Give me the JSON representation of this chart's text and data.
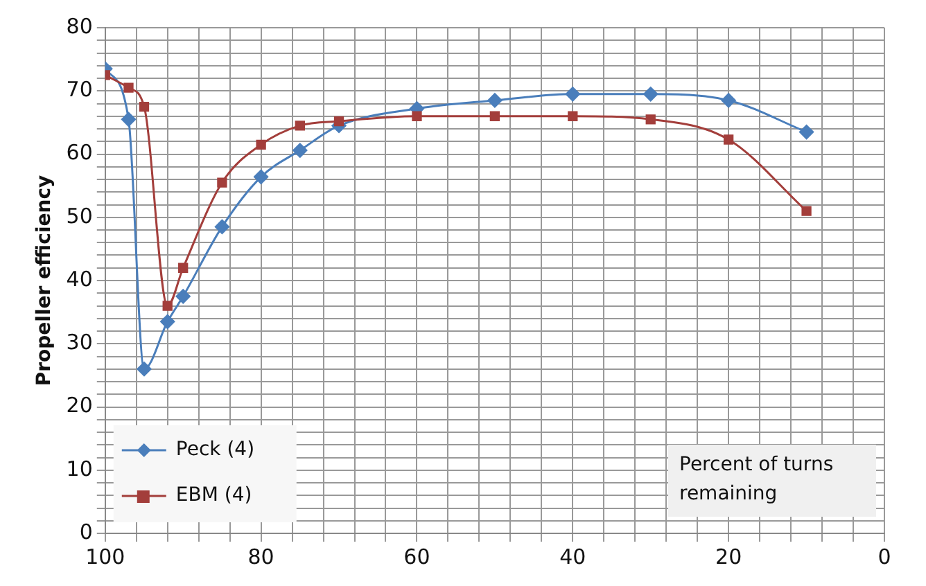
{
  "chart_data": {
    "type": "line",
    "ylabel": "Propeller efficiency",
    "xlabel": "Percent of turns remaining",
    "xlim": [
      100,
      0
    ],
    "ylim": [
      0,
      80
    ],
    "xticks": [
      100,
      {
        "value": 96,
        "label": null
      },
      {
        "value": 92,
        "label": null
      },
      {
        "value": 88,
        "label": null
      },
      {
        "value": 84,
        "label": null
      },
      80,
      {
        "value": 76,
        "label": null
      },
      {
        "value": 72,
        "label": null
      },
      {
        "value": 68,
        "label": null
      },
      {
        "value": 64,
        "label": null
      },
      60,
      {
        "value": 56,
        "label": null
      },
      {
        "value": 52,
        "label": null
      },
      {
        "value": 48,
        "label": null
      },
      {
        "value": 44,
        "label": null
      },
      40,
      {
        "value": 36,
        "label": null
      },
      {
        "value": 32,
        "label": null
      },
      {
        "value": 28,
        "label": null
      },
      {
        "value": 24,
        "label": null
      },
      20,
      {
        "value": 16,
        "label": null
      },
      {
        "value": 12,
        "label": null
      },
      {
        "value": 8,
        "label": null
      },
      {
        "value": 4,
        "label": null
      },
      0
    ],
    "yticks": [
      0,
      {
        "value": 2,
        "label": null
      },
      {
        "value": 4,
        "label": null
      },
      {
        "value": 6,
        "label": null
      },
      {
        "value": 8,
        "label": null
      },
      10,
      {
        "value": 12,
        "label": null
      },
      {
        "value": 14,
        "label": null
      },
      {
        "value": 16,
        "label": null
      },
      {
        "value": 18,
        "label": null
      },
      20,
      {
        "value": 22,
        "label": null
      },
      {
        "value": 24,
        "label": null
      },
      {
        "value": 26,
        "label": null
      },
      {
        "value": 28,
        "label": null
      },
      30,
      {
        "value": 32,
        "label": null
      },
      {
        "value": 34,
        "label": null
      },
      {
        "value": 36,
        "label": null
      },
      {
        "value": 38,
        "label": null
      },
      40,
      {
        "value": 42,
        "label": null
      },
      {
        "value": 44,
        "label": null
      },
      {
        "value": 46,
        "label": null
      },
      {
        "value": 48,
        "label": null
      },
      50,
      {
        "value": 52,
        "label": null
      },
      {
        "value": 54,
        "label": null
      },
      {
        "value": 56,
        "label": null
      },
      {
        "value": 58,
        "label": null
      },
      60,
      {
        "value": 62,
        "label": null
      },
      {
        "value": 64,
        "label": null
      },
      {
        "value": 66,
        "label": null
      },
      {
        "value": 68,
        "label": null
      },
      70,
      {
        "value": 72,
        "label": null
      },
      {
        "value": 74,
        "label": null
      },
      {
        "value": 76,
        "label": null
      },
      {
        "value": 78,
        "label": null
      },
      80
    ],
    "grid": true,
    "legend": "bottom left",
    "series": [
      {
        "name": "Peck (4)",
        "color": "#4a7ebb",
        "marker": "diamond",
        "x": [
          100,
          97,
          95,
          92,
          90,
          85,
          80,
          75,
          70,
          60,
          50,
          40,
          30,
          20,
          10
        ],
        "values": [
          73.5,
          65.5,
          26,
          33.5,
          37.5,
          48.5,
          56.4,
          60.6,
          64.5,
          67.2,
          68.5,
          69.5,
          69.5,
          68.5,
          63.5
        ]
      },
      {
        "name": "EBM (4)",
        "color": "#a33e3b",
        "marker": "square",
        "x": [
          100,
          97,
          95,
          92,
          90,
          85,
          80,
          75,
          70,
          60,
          50,
          40,
          30,
          20,
          10
        ],
        "values": [
          72.5,
          70.5,
          67.5,
          36,
          42,
          55.5,
          61.5,
          64.5,
          65.2,
          66,
          66,
          66,
          65.5,
          62.3,
          51
        ]
      }
    ]
  }
}
